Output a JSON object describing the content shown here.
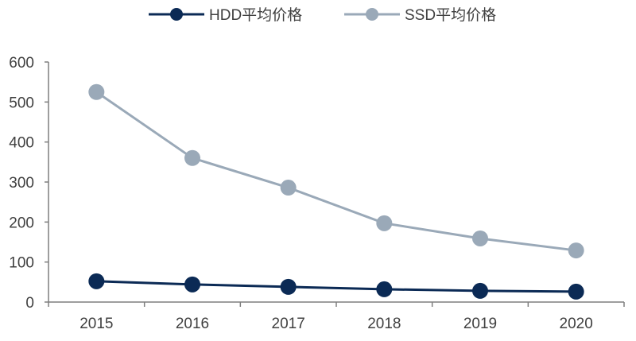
{
  "chart_data": {
    "type": "line",
    "categories": [
      "2015",
      "2016",
      "2017",
      "2018",
      "2019",
      "2020"
    ],
    "series": [
      {
        "name": "HDD平均价格",
        "values": [
          52,
          44,
          38,
          32,
          28,
          26
        ],
        "color": "#0b2a55"
      },
      {
        "name": "SSD平均价格",
        "values": [
          525,
          360,
          286,
          197,
          159,
          129
        ],
        "color": "#9aa9b8"
      }
    ],
    "ylim": [
      0,
      600
    ],
    "yticks": [
      "0",
      "100",
      "200",
      "300",
      "400",
      "500",
      "600"
    ],
    "grid": false,
    "legend": "top-center"
  }
}
